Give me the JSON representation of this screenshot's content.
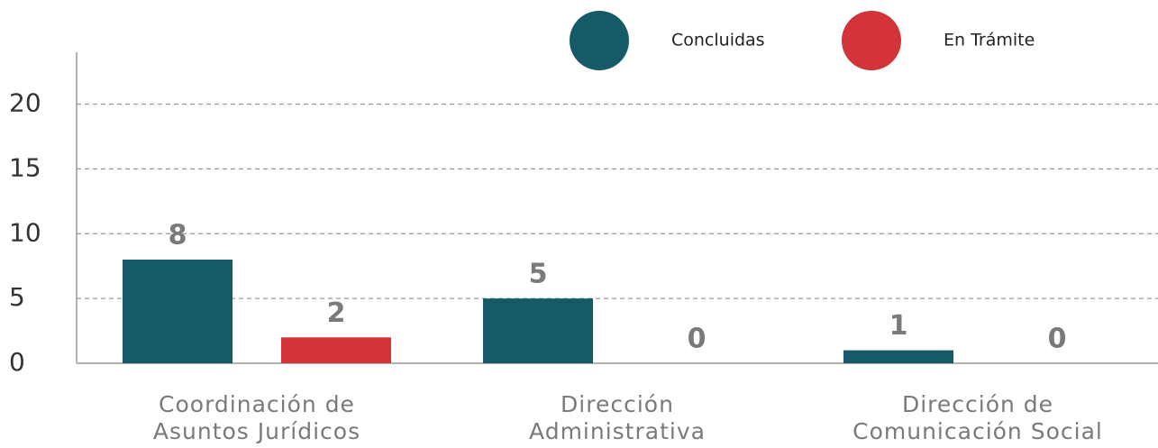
{
  "chart_data": {
    "type": "bar",
    "categories": [
      [
        "Coordinación de",
        "Asuntos Jurídicos"
      ],
      [
        "Dirección",
        "Administrativa"
      ],
      [
        "Dirección de",
        "Comunicación Social"
      ]
    ],
    "series": [
      {
        "name": "Concluidas",
        "color": "#155a66",
        "values": [
          8,
          5,
          1
        ]
      },
      {
        "name": "En Trámite",
        "color": "#d3343a",
        "values": [
          2,
          0,
          0
        ]
      }
    ],
    "ylim": [
      0,
      24
    ],
    "yticks": [
      0,
      5,
      10,
      15,
      20
    ],
    "grid": true,
    "legend": "top-right"
  }
}
